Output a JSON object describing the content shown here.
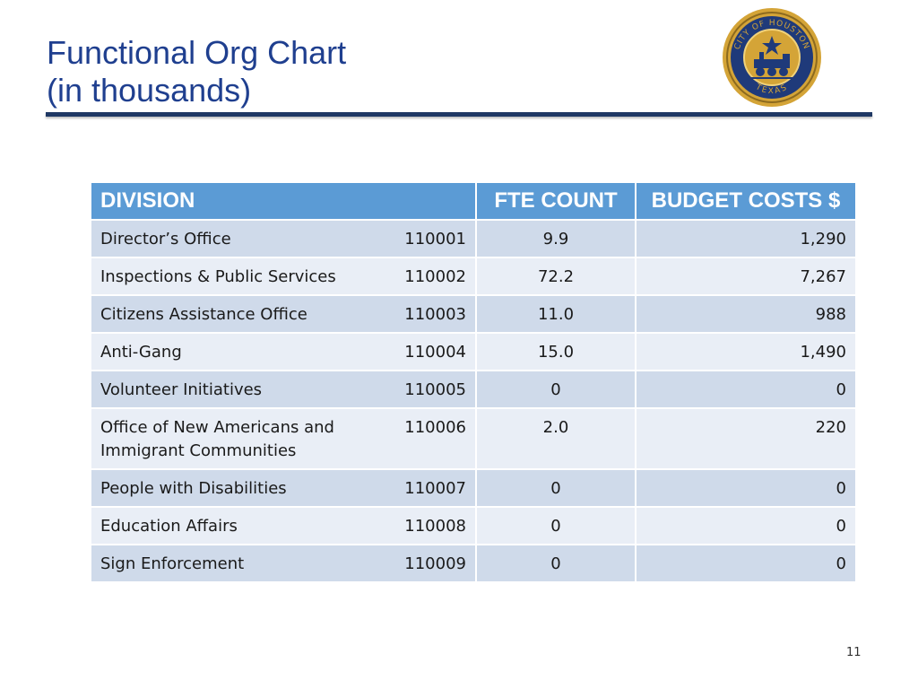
{
  "title": {
    "line1": "Functional Org Chart",
    "line2": "(in thousands)"
  },
  "logo": {
    "name": "City of Houston seal",
    "ring_text_top": "CITY OF HOUSTON",
    "ring_text_bottom": "TEXAS",
    "colors": {
      "gold": "#d4a437",
      "navy": "#1f3a7a"
    }
  },
  "table": {
    "headers": {
      "division": "DIVISION",
      "fte": "FTE COUNT",
      "budget": "BUDGET COSTS $"
    },
    "rows": [
      {
        "name": "Director’s Office",
        "code": "110001",
        "fte": "9.9",
        "budget": "1,290"
      },
      {
        "name": "Inspections & Public Services",
        "code": "110002",
        "fte": "72.2",
        "budget": "7,267"
      },
      {
        "name": "Citizens Assistance Office",
        "code": "110003",
        "fte": "11.0",
        "budget": "988"
      },
      {
        "name": "Anti-Gang",
        "code": "110004",
        "fte": "15.0",
        "budget": "1,490"
      },
      {
        "name": "Volunteer Initiatives",
        "code": "110005",
        "fte": "0",
        "budget": "0"
      },
      {
        "name": "Office of New Americans and Immigrant Communities",
        "code": "110006",
        "fte": "2.0",
        "budget": "220"
      },
      {
        "name": "People with Disabilities",
        "code": "110007",
        "fte": "0",
        "budget": "0"
      },
      {
        "name": "Education Affairs",
        "code": "110008",
        "fte": "0",
        "budget": "0"
      },
      {
        "name": "Sign Enforcement",
        "code": "110009",
        "fte": "0",
        "budget": "0"
      }
    ]
  },
  "page_number": "11",
  "colors": {
    "title": "#1f3f8f",
    "header_bg": "#5b9bd5",
    "row_dark": "#cfdaea",
    "row_light": "#e9eef6",
    "rule": "#1f3864"
  }
}
